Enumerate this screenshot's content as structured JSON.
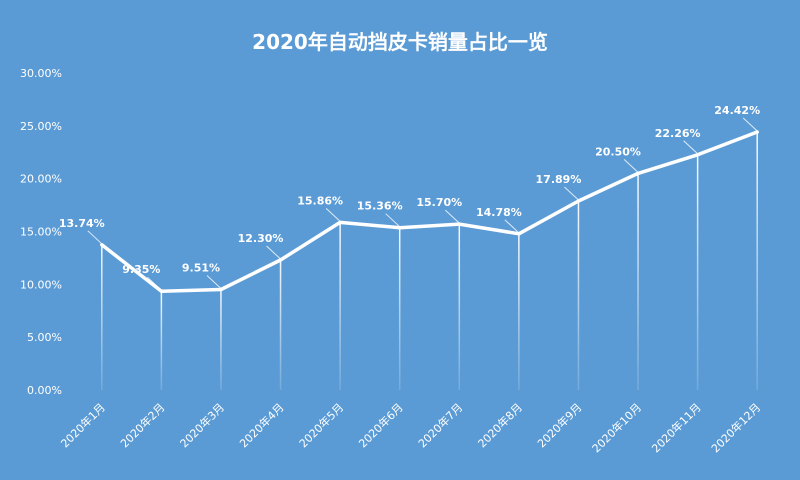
{
  "chart_data": {
    "type": "line",
    "title": "2020年自动挡皮卡销量占比一览",
    "xlabel": "",
    "ylabel": "",
    "categories": [
      "2020年1月",
      "2020年2月",
      "2020年3月",
      "2020年4月",
      "2020年5月",
      "2020年6月",
      "2020年7月",
      "2020年8月",
      "2020年9月",
      "2020年10月",
      "2020年11月",
      "2020年12月"
    ],
    "series": [
      {
        "values": [
          13.74,
          9.35,
          9.51,
          12.3,
          15.86,
          15.36,
          15.7,
          14.78,
          17.89,
          20.5,
          22.26,
          24.42
        ],
        "labels": [
          "13.74%",
          "9.35%",
          "9.51%",
          "12.30%",
          "15.86%",
          "15.36%",
          "15.70%",
          "14.78%",
          "17.89%",
          "20.50%",
          "22.26%",
          "24.42%"
        ]
      }
    ],
    "ylim": [
      0,
      30
    ],
    "yticks": [
      "0.00%",
      "5.00%",
      "10.00%",
      "15.00%",
      "20.00%",
      "25.00%",
      "30.00%"
    ],
    "ytick_values": [
      0,
      5,
      10,
      15,
      20,
      25,
      30
    ],
    "grid": false,
    "legend": "none",
    "colors": {
      "background": "#5b9bd5",
      "line": "#ffffff",
      "text": "#ffffff"
    }
  }
}
